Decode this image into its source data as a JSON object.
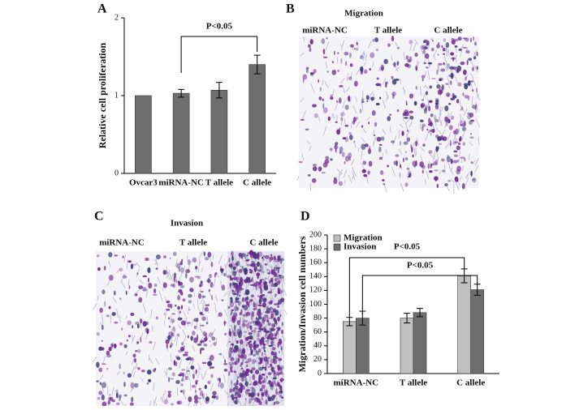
{
  "figure": {
    "panel_a": {
      "label": "A"
    },
    "panel_b": {
      "label": "B",
      "title": "Migration",
      "images": [
        "miRNA-NC",
        "T allele",
        "C allele"
      ]
    },
    "panel_c": {
      "label": "C",
      "title": "Invasion",
      "images": [
        "miRNA-NC",
        "T allele",
        "C allele"
      ]
    },
    "panel_d": {
      "label": "D"
    }
  },
  "chart_data": [
    {
      "type": "bar",
      "ylabel": "Relative cell proliferation",
      "categories": [
        "Ovcar3",
        "miRNA-NC",
        "T allele",
        "C allele"
      ],
      "values": [
        1,
        1.03,
        1.07,
        1.4
      ],
      "errors": [
        0,
        0.05,
        0.1,
        0.12
      ],
      "color": "#6e6e6e",
      "ylim": [
        0,
        2
      ],
      "yticks": [
        0,
        1,
        2
      ],
      "annotations": [
        "P<0.05"
      ]
    },
    {
      "type": "grouped-bar",
      "ylabel": "Migration/Invasion cell numbers",
      "categories": [
        "miRNA-NC",
        "T allele",
        "C allele"
      ],
      "series": [
        {
          "name": "Migration",
          "color": "#c0c0c0",
          "values": [
            75,
            80,
            141
          ],
          "errors": [
            6,
            7,
            10
          ]
        },
        {
          "name": "Invasion",
          "color": "#6e6e6e",
          "values": [
            80,
            88,
            121
          ],
          "errors": [
            10,
            6,
            8
          ]
        }
      ],
      "ylim": [
        0,
        200
      ],
      "yticks": [
        0,
        20,
        40,
        60,
        80,
        100,
        120,
        140,
        160,
        180,
        200
      ],
      "legend": "upper-left",
      "annotations": [
        "P<0.05",
        "P<0.05"
      ]
    }
  ]
}
